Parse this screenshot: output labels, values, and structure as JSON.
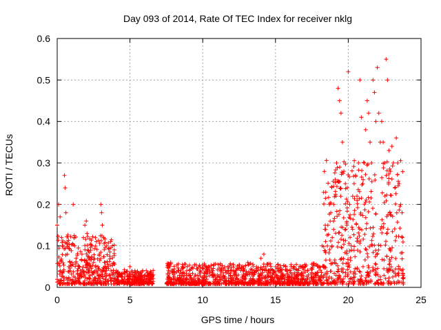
{
  "chart_data": {
    "type": "scatter",
    "title": "Day 093 of 2014, Rate Of TEC Index for receiver nklg",
    "xlabel": "GPS time / hours",
    "ylabel": "ROTI / TECUs",
    "xlim": [
      0,
      25
    ],
    "ylim": [
      0,
      0.6
    ],
    "grid": true,
    "marker": "+",
    "series": [
      {
        "name": "ROTI",
        "color": "#ff0000",
        "x": [
          0.0,
          0.1,
          0.2,
          0.3,
          0.4,
          0.5,
          0.55,
          0.6,
          0.7,
          0.8,
          0.9,
          1.0,
          1.1,
          1.15,
          1.2,
          1.3,
          1.4,
          1.5,
          1.6,
          1.7,
          1.8,
          1.9,
          2.0,
          2.05,
          2.1,
          2.2,
          2.3,
          2.4,
          2.5,
          2.6,
          2.7,
          2.8,
          2.9,
          3.0,
          3.05,
          3.1,
          3.2,
          3.3,
          3.4,
          3.5,
          3.6,
          3.7,
          3.8,
          3.9,
          4.0,
          4.2,
          4.4,
          4.6,
          4.8,
          5.0,
          5.2,
          5.4,
          5.6,
          5.8,
          6.0,
          6.2,
          6.4,
          6.5,
          7.6,
          7.8,
          8.0,
          8.3,
          8.6,
          8.9,
          9.2,
          9.5,
          9.8,
          10.1,
          10.4,
          10.7,
          11.0,
          11.3,
          11.6,
          11.9,
          12.2,
          12.5,
          12.8,
          13.1,
          13.4,
          13.7,
          14.0,
          14.2,
          14.5,
          14.8,
          15.1,
          15.4,
          15.7,
          16.0,
          16.3,
          16.6,
          16.9,
          17.2,
          17.5,
          17.8,
          18.0,
          18.2,
          18.4,
          18.6,
          18.8,
          18.9,
          19.0,
          19.1,
          19.2,
          19.3,
          19.4,
          19.5,
          19.6,
          19.7,
          19.8,
          19.9,
          20.0,
          20.1,
          20.2,
          20.3,
          20.4,
          20.5,
          20.6,
          20.7,
          20.8,
          20.9,
          21.0,
          21.1,
          21.2,
          21.3,
          21.4,
          21.5,
          21.6,
          21.7,
          21.8,
          21.9,
          22.0,
          22.1,
          22.2,
          22.3,
          22.4,
          22.5,
          22.6,
          22.7,
          22.8,
          22.9,
          23.0,
          23.1,
          23.2,
          23.3,
          23.4,
          23.5,
          23.6,
          23.7
        ],
        "y": [
          0.15,
          0.2,
          0.17,
          0.12,
          0.1,
          0.27,
          0.24,
          0.18,
          0.08,
          0.05,
          0.04,
          0.06,
          0.2,
          0.12,
          0.1,
          0.07,
          0.04,
          0.05,
          0.04,
          0.08,
          0.12,
          0.15,
          0.16,
          0.13,
          0.09,
          0.07,
          0.05,
          0.1,
          0.06,
          0.04,
          0.04,
          0.05,
          0.08,
          0.2,
          0.18,
          0.15,
          0.12,
          0.06,
          0.1,
          0.05,
          0.03,
          0.04,
          0.03,
          0.03,
          0.02,
          0.025,
          0.03,
          0.02,
          0.03,
          0.05,
          0.03,
          0.025,
          0.035,
          0.03,
          0.02,
          0.035,
          0.03,
          0.025,
          0.03,
          0.06,
          0.03,
          0.04,
          0.05,
          0.04,
          0.045,
          0.03,
          0.04,
          0.035,
          0.05,
          0.04,
          0.03,
          0.045,
          0.035,
          0.04,
          0.03,
          0.045,
          0.04,
          0.06,
          0.035,
          0.04,
          0.07,
          0.08,
          0.04,
          0.03,
          0.045,
          0.035,
          0.05,
          0.04,
          0.035,
          0.045,
          0.05,
          0.04,
          0.045,
          0.055,
          0.05,
          0.1,
          0.14,
          0.15,
          0.18,
          0.12,
          0.2,
          0.26,
          0.3,
          0.48,
          0.45,
          0.42,
          0.35,
          0.28,
          0.25,
          0.15,
          0.52,
          0.2,
          0.1,
          0.14,
          0.25,
          0.27,
          0.22,
          0.3,
          0.5,
          0.41,
          0.25,
          0.3,
          0.38,
          0.45,
          0.42,
          0.35,
          0.3,
          0.5,
          0.47,
          0.4,
          0.53,
          0.42,
          0.35,
          0.4,
          0.35,
          0.3,
          0.55,
          0.5,
          0.33,
          0.28,
          0.34,
          0.3,
          0.24,
          0.36,
          0.3,
          0.25,
          0.2,
          0.18
        ],
        "dense_ranges": [
          {
            "x_from": 0.0,
            "x_to": 4.0,
            "y_max_typical": 0.12
          },
          {
            "x_from": 4.0,
            "x_to": 6.6,
            "y_max_typical": 0.035
          },
          {
            "x_from": 7.5,
            "x_to": 18.3,
            "y_max_typical": 0.05
          },
          {
            "x_from": 18.3,
            "x_to": 23.8,
            "y_max_typical": 0.3
          }
        ]
      }
    ]
  }
}
